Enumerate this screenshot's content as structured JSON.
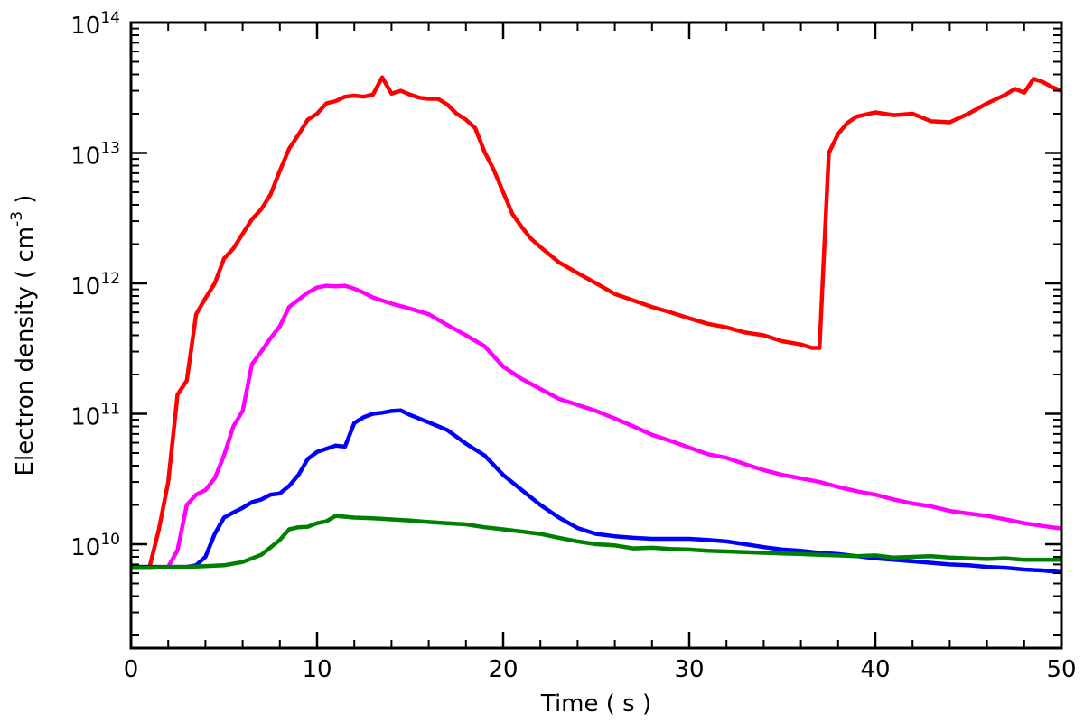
{
  "chart_data": {
    "type": "line",
    "xlabel": "Time ( s )",
    "ylabel": "Electron density ( cm",
    "ylabel_sup": "-3",
    "ylabel_close": " )",
    "xlim": [
      0,
      50
    ],
    "ylim": [
      1600000000.0,
      100000000000000.0
    ],
    "yscale": "log",
    "grid": false,
    "legend": "none",
    "x_ticks": [
      0,
      10,
      20,
      30,
      40,
      50
    ],
    "x_tick_labels": [
      "0",
      "10",
      "20",
      "30",
      "40",
      "50"
    ],
    "y_ticks": [
      10000000000.0,
      100000000000.0,
      1000000000000.0,
      10000000000000.0,
      100000000000000.0
    ],
    "y_tick_labels": [
      {
        "base": "10",
        "exp": "10"
      },
      {
        "base": "10",
        "exp": "11"
      },
      {
        "base": "10",
        "exp": "12"
      },
      {
        "base": "10",
        "exp": "13"
      },
      {
        "base": "10",
        "exp": "14"
      }
    ],
    "series": [
      {
        "color": "#ff0000",
        "points": [
          [
            0,
            6700000000.0
          ],
          [
            1,
            6700000000.0
          ],
          [
            1.5,
            13000000000.0
          ],
          [
            2,
            30000000000.0
          ],
          [
            2.5,
            140000000000.0
          ],
          [
            3,
            180000000000.0
          ],
          [
            3.5,
            580000000000.0
          ],
          [
            4,
            770000000000.0
          ],
          [
            4.5,
            1000000000000.0
          ],
          [
            5,
            1550000000000.0
          ],
          [
            5.5,
            1850000000000.0
          ],
          [
            6,
            2400000000000.0
          ],
          [
            6.5,
            3100000000000.0
          ],
          [
            7,
            3700000000000.0
          ],
          [
            7.5,
            4800000000000.0
          ],
          [
            8,
            7300000000000.0
          ],
          [
            8.5,
            10800000000000.0
          ],
          [
            9,
            13800000000000.0
          ],
          [
            9.5,
            18000000000000.0
          ],
          [
            10,
            20000000000000.0
          ],
          [
            10.5,
            24000000000000.0
          ],
          [
            11,
            25000000000000.0
          ],
          [
            11.5,
            27000000000000.0
          ],
          [
            12,
            27500000000000.0
          ],
          [
            12.5,
            27000000000000.0
          ],
          [
            13,
            28000000000000.0
          ],
          [
            13.5,
            38000000000000.0
          ],
          [
            14,
            28500000000000.0
          ],
          [
            14.5,
            30000000000000.0
          ],
          [
            15,
            28000000000000.0
          ],
          [
            15.5,
            26500000000000.0
          ],
          [
            16,
            26000000000000.0
          ],
          [
            16.5,
            26000000000000.0
          ],
          [
            17,
            23500000000000.0
          ],
          [
            17.5,
            20000000000000.0
          ],
          [
            18,
            18000000000000.0
          ],
          [
            18.5,
            15500000000000.0
          ],
          [
            19,
            10200000000000.0
          ],
          [
            19.5,
            7400000000000.0
          ],
          [
            20,
            5000000000000.0
          ],
          [
            20.5,
            3400000000000.0
          ],
          [
            21,
            2700000000000.0
          ],
          [
            21.5,
            2200000000000.0
          ],
          [
            22,
            1900000000000.0
          ],
          [
            23,
            1450000000000.0
          ],
          [
            24,
            1200000000000.0
          ],
          [
            25,
            1000000000000.0
          ],
          [
            26,
            830000000000.0
          ],
          [
            27,
            740000000000.0
          ],
          [
            28,
            660000000000.0
          ],
          [
            29,
            600000000000.0
          ],
          [
            30,
            540000000000.0
          ],
          [
            31,
            490000000000.0
          ],
          [
            32,
            460000000000.0
          ],
          [
            33,
            420000000000.0
          ],
          [
            34,
            400000000000.0
          ],
          [
            35,
            360000000000.0
          ],
          [
            36,
            340000000000.0
          ],
          [
            36.6,
            320000000000.0
          ],
          [
            37,
            320000000000.0
          ],
          [
            37.5,
            10000000000000.0
          ],
          [
            38,
            14000000000000.0
          ],
          [
            38.5,
            17000000000000.0
          ],
          [
            39,
            19000000000000.0
          ],
          [
            40,
            20500000000000.0
          ],
          [
            41,
            19500000000000.0
          ],
          [
            42,
            20000000000000.0
          ],
          [
            43,
            17500000000000.0
          ],
          [
            44,
            17200000000000.0
          ],
          [
            45,
            20000000000000.0
          ],
          [
            46,
            24000000000000.0
          ],
          [
            47,
            28000000000000.0
          ],
          [
            47.5,
            31000000000000.0
          ],
          [
            48,
            29000000000000.0
          ],
          [
            48.5,
            37000000000000.0
          ],
          [
            49,
            35000000000000.0
          ],
          [
            49.5,
            32000000000000.0
          ],
          [
            50,
            30000000000000.0
          ]
        ]
      },
      {
        "color": "#ff00ff",
        "points": [
          [
            0,
            6600000000.0
          ],
          [
            1,
            6600000000.0
          ],
          [
            2,
            6700000000.0
          ],
          [
            2.5,
            9000000000.0
          ],
          [
            3,
            20000000000.0
          ],
          [
            3.5,
            24000000000.0
          ],
          [
            4,
            26000000000.0
          ],
          [
            4.5,
            32000000000.0
          ],
          [
            5,
            48000000000.0
          ],
          [
            5.5,
            80000000000.0
          ],
          [
            6,
            105000000000.0
          ],
          [
            6.5,
            240000000000.0
          ],
          [
            7,
            300000000000.0
          ],
          [
            7.5,
            380000000000.0
          ],
          [
            8,
            470000000000.0
          ],
          [
            8.5,
            660000000000.0
          ],
          [
            9,
            750000000000.0
          ],
          [
            9.5,
            850000000000.0
          ],
          [
            10,
            930000000000.0
          ],
          [
            10.5,
            960000000000.0
          ],
          [
            11,
            950000000000.0
          ],
          [
            11.5,
            960000000000.0
          ],
          [
            12,
            910000000000.0
          ],
          [
            12.5,
            850000000000.0
          ],
          [
            13,
            780000000000.0
          ],
          [
            14,
            700000000000.0
          ],
          [
            15,
            640000000000.0
          ],
          [
            16,
            580000000000.0
          ],
          [
            17,
            480000000000.0
          ],
          [
            18,
            400000000000.0
          ],
          [
            19,
            330000000000.0
          ],
          [
            20,
            230000000000.0
          ],
          [
            21,
            185000000000.0
          ],
          [
            22,
            155000000000.0
          ],
          [
            23,
            130000000000.0
          ],
          [
            24,
            117000000000.0
          ],
          [
            25,
            105000000000.0
          ],
          [
            26,
            92000000000.0
          ],
          [
            27,
            80000000000.0
          ],
          [
            28,
            69000000000.0
          ],
          [
            29,
            62000000000.0
          ],
          [
            30,
            55000000000.0
          ],
          [
            31,
            49000000000.0
          ],
          [
            32,
            46000000000.0
          ],
          [
            33,
            41000000000.0
          ],
          [
            34,
            37000000000.0
          ],
          [
            35,
            34000000000.0
          ],
          [
            36,
            32000000000.0
          ],
          [
            37,
            30000000000.0
          ],
          [
            38,
            27500000000.0
          ],
          [
            39,
            25500000000.0
          ],
          [
            40,
            24000000000.0
          ],
          [
            41,
            22000000000.0
          ],
          [
            42,
            20500000000.0
          ],
          [
            43,
            19500000000.0
          ],
          [
            44,
            18000000000.0
          ],
          [
            45,
            17200000000.0
          ],
          [
            46,
            16500000000.0
          ],
          [
            47,
            15500000000.0
          ],
          [
            48,
            14500000000.0
          ],
          [
            49,
            13800000000.0
          ],
          [
            50,
            13200000000.0
          ]
        ]
      },
      {
        "color": "#0000ff",
        "points": [
          [
            0,
            6700000000.0
          ],
          [
            3,
            6700000000.0
          ],
          [
            3.5,
            6900000000.0
          ],
          [
            4,
            8000000000.0
          ],
          [
            4.5,
            12000000000.0
          ],
          [
            5,
            16000000000.0
          ],
          [
            5.5,
            17500000000.0
          ],
          [
            6,
            19000000000.0
          ],
          [
            6.5,
            21000000000.0
          ],
          [
            7,
            22000000000.0
          ],
          [
            7.5,
            24000000000.0
          ],
          [
            8,
            24500000000.0
          ],
          [
            8.5,
            28000000000.0
          ],
          [
            9,
            34000000000.0
          ],
          [
            9.5,
            45000000000.0
          ],
          [
            10,
            51000000000.0
          ],
          [
            10.5,
            54000000000.0
          ],
          [
            11,
            57000000000.0
          ],
          [
            11.5,
            56000000000.0
          ],
          [
            12,
            85000000000.0
          ],
          [
            12.5,
            94000000000.0
          ],
          [
            13,
            100000000000.0
          ],
          [
            13.5,
            102000000000.0
          ],
          [
            14,
            105000000000.0
          ],
          [
            14.5,
            106000000000.0
          ],
          [
            15,
            98000000000.0
          ],
          [
            16,
            86000000000.0
          ],
          [
            17,
            75000000000.0
          ],
          [
            18,
            59000000000.0
          ],
          [
            19,
            48000000000.0
          ],
          [
            20,
            34000000000.0
          ],
          [
            21,
            26000000000.0
          ],
          [
            22,
            20000000000.0
          ],
          [
            23,
            16000000000.0
          ],
          [
            24,
            13300000000.0
          ],
          [
            25,
            12000000000.0
          ],
          [
            26,
            11500000000.0
          ],
          [
            27,
            11200000000.0
          ],
          [
            28,
            11000000000.0
          ],
          [
            29,
            11000000000.0
          ],
          [
            30,
            11000000000.0
          ],
          [
            31,
            10800000000.0
          ],
          [
            32,
            10500000000.0
          ],
          [
            33,
            10000000000.0
          ],
          [
            34,
            9500000000.0
          ],
          [
            35,
            9100000000.0
          ],
          [
            36,
            8900000000.0
          ],
          [
            37,
            8600000000.0
          ],
          [
            38,
            8400000000.0
          ],
          [
            39,
            8100000000.0
          ],
          [
            40,
            7800000000.0
          ],
          [
            41,
            7600000000.0
          ],
          [
            42,
            7400000000.0
          ],
          [
            43,
            7200000000.0
          ],
          [
            44,
            7000000000.0
          ],
          [
            45,
            6900000000.0
          ],
          [
            46,
            6700000000.0
          ],
          [
            47,
            6600000000.0
          ],
          [
            48,
            6400000000.0
          ],
          [
            49,
            6300000000.0
          ],
          [
            50,
            6100000000.0
          ]
        ]
      },
      {
        "color": "#008000",
        "points": [
          [
            0,
            6600000000.0
          ],
          [
            1,
            6600000000.0
          ],
          [
            2,
            6700000000.0
          ],
          [
            3,
            6700000000.0
          ],
          [
            4,
            6800000000.0
          ],
          [
            5,
            6900000000.0
          ],
          [
            6,
            7300000000.0
          ],
          [
            7,
            8300000000.0
          ],
          [
            8,
            10800000000.0
          ],
          [
            8.5,
            13000000000.0
          ],
          [
            9,
            13500000000.0
          ],
          [
            9.5,
            13600000000.0
          ],
          [
            10,
            14500000000.0
          ],
          [
            10.5,
            15000000000.0
          ],
          [
            11,
            16500000000.0
          ],
          [
            12,
            16000000000.0
          ],
          [
            13,
            15800000000.0
          ],
          [
            14,
            15500000000.0
          ],
          [
            15,
            15200000000.0
          ],
          [
            16,
            14800000000.0
          ],
          [
            17,
            14500000000.0
          ],
          [
            18,
            14200000000.0
          ],
          [
            19,
            13500000000.0
          ],
          [
            20,
            13000000000.0
          ],
          [
            21,
            12500000000.0
          ],
          [
            22,
            12000000000.0
          ],
          [
            23,
            11200000000.0
          ],
          [
            24,
            10500000000.0
          ],
          [
            25,
            10000000000.0
          ],
          [
            26,
            9800000000.0
          ],
          [
            27,
            9300000000.0
          ],
          [
            28,
            9400000000.0
          ],
          [
            29,
            9200000000.0
          ],
          [
            30,
            9100000000.0
          ],
          [
            31,
            8900000000.0
          ],
          [
            32,
            8800000000.0
          ],
          [
            33,
            8700000000.0
          ],
          [
            34,
            8600000000.0
          ],
          [
            35,
            8500000000.0
          ],
          [
            36,
            8400000000.0
          ],
          [
            37,
            8300000000.0
          ],
          [
            38,
            8200000000.0
          ],
          [
            39,
            8100000000.0
          ],
          [
            40,
            8200000000.0
          ],
          [
            41,
            7900000000.0
          ],
          [
            42,
            8000000000.0
          ],
          [
            43,
            8100000000.0
          ],
          [
            44,
            7900000000.0
          ],
          [
            45,
            7800000000.0
          ],
          [
            46,
            7700000000.0
          ],
          [
            47,
            7800000000.0
          ],
          [
            48,
            7600000000.0
          ],
          [
            49,
            7600000000.0
          ],
          [
            50,
            7600000000.0
          ]
        ]
      }
    ]
  }
}
